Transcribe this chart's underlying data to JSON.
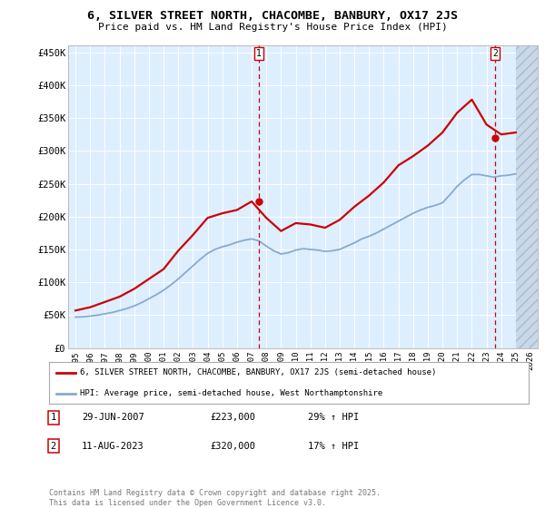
{
  "title": "6, SILVER STREET NORTH, CHACOMBE, BANBURY, OX17 2JS",
  "subtitle": "Price paid vs. HM Land Registry's House Price Index (HPI)",
  "legend_line1": "6, SILVER STREET NORTH, CHACOMBE, BANBURY, OX17 2JS (semi-detached house)",
  "legend_line2": "HPI: Average price, semi-detached house, West Northamptonshire",
  "annotation1_label": "1",
  "annotation1_date": "29-JUN-2007",
  "annotation1_price": "£223,000",
  "annotation1_hpi": "29% ↑ HPI",
  "annotation2_label": "2",
  "annotation2_date": "11-AUG-2023",
  "annotation2_price": "£320,000",
  "annotation2_hpi": "17% ↑ HPI",
  "footnote": "Contains HM Land Registry data © Crown copyright and database right 2025.\nThis data is licensed under the Open Government Licence v3.0.",
  "ylim": [
    0,
    460000
  ],
  "xlim": [
    1994.5,
    2026.5
  ],
  "red_color": "#cc0000",
  "blue_color": "#88aacc",
  "bg_color": "#ddeeff",
  "grid_color": "#ffffff",
  "marker1_x": 2007.5,
  "marker2_x": 2023.6,
  "yticks": [
    0,
    50000,
    100000,
    150000,
    200000,
    250000,
    300000,
    350000,
    400000,
    450000
  ],
  "ytick_labels": [
    "£0",
    "£50K",
    "£100K",
    "£150K",
    "£200K",
    "£250K",
    "£300K",
    "£350K",
    "£400K",
    "£450K"
  ],
  "hpi_x": [
    1995,
    1995.5,
    1996,
    1996.5,
    1997,
    1997.5,
    1998,
    1998.5,
    1999,
    1999.5,
    2000,
    2000.5,
    2001,
    2001.5,
    2002,
    2002.5,
    2003,
    2003.5,
    2004,
    2004.5,
    2005,
    2005.5,
    2006,
    2006.5,
    2007,
    2007.5,
    2008,
    2008.5,
    2009,
    2009.5,
    2010,
    2010.5,
    2011,
    2011.5,
    2012,
    2012.5,
    2013,
    2013.5,
    2014,
    2014.5,
    2015,
    2015.5,
    2016,
    2016.5,
    2017,
    2017.5,
    2018,
    2018.5,
    2019,
    2019.5,
    2020,
    2020.5,
    2021,
    2021.5,
    2022,
    2022.5,
    2023,
    2023.5,
    2024,
    2024.5,
    2025
  ],
  "hpi_y": [
    47000,
    47500,
    48500,
    50000,
    52000,
    54000,
    57000,
    60000,
    64000,
    69000,
    75000,
    81000,
    88000,
    96000,
    105000,
    115000,
    125000,
    135000,
    144000,
    150000,
    154000,
    157000,
    161000,
    164000,
    166000,
    163000,
    155000,
    148000,
    143000,
    145000,
    149000,
    151000,
    150000,
    149000,
    147000,
    148000,
    150000,
    155000,
    160000,
    166000,
    170000,
    175000,
    181000,
    187000,
    193000,
    199000,
    205000,
    210000,
    214000,
    217000,
    221000,
    233000,
    246000,
    256000,
    264000,
    264000,
    262000,
    260000,
    262000,
    263000,
    265000
  ],
  "price_x": [
    1995,
    1996,
    1997,
    1998,
    1999,
    2000,
    2001,
    2002,
    2003,
    2004,
    2005,
    2006,
    2007,
    2008,
    2009,
    2010,
    2011,
    2012,
    2013,
    2014,
    2015,
    2016,
    2017,
    2018,
    2019,
    2020,
    2021,
    2022,
    2023,
    2024,
    2025
  ],
  "price_y": [
    57000,
    62000,
    70000,
    78000,
    90000,
    105000,
    120000,
    148000,
    172000,
    198000,
    205000,
    210000,
    223000,
    198000,
    178000,
    190000,
    188000,
    183000,
    195000,
    215000,
    232000,
    252000,
    278000,
    292000,
    308000,
    328000,
    358000,
    378000,
    340000,
    325000,
    328000
  ],
  "hatch_start_x": 2025.0,
  "dot1_x": 2007.5,
  "dot1_y": 223000,
  "dot2_x": 2023.6,
  "dot2_y": 320000
}
